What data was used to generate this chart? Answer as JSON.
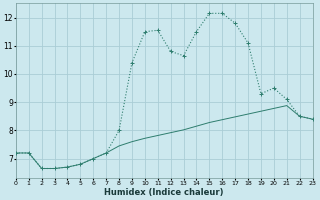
{
  "xlabel": "Humidex (Indice chaleur)",
  "background_color": "#cce8ee",
  "grid_color": "#aacdd6",
  "line_color": "#2e7d6e",
  "line1_x": [
    0,
    1,
    2,
    3,
    4,
    5,
    6,
    7,
    8,
    9,
    10,
    11,
    12,
    13,
    14,
    15,
    16,
    17,
    18,
    19,
    20,
    21,
    22,
    23
  ],
  "line1_y": [
    7.2,
    7.2,
    6.65,
    6.65,
    6.7,
    6.8,
    7.0,
    7.2,
    8.0,
    10.4,
    11.5,
    11.55,
    10.8,
    10.65,
    11.5,
    12.15,
    12.15,
    11.8,
    11.1,
    9.3,
    9.5,
    9.1,
    8.5,
    8.4
  ],
  "line2_x": [
    0,
    1,
    2,
    3,
    4,
    5,
    6,
    7,
    8,
    9,
    10,
    11,
    12,
    13,
    14,
    15,
    16,
    17,
    18,
    19,
    20,
    21,
    22,
    23
  ],
  "line2_y": [
    7.2,
    7.2,
    6.65,
    6.65,
    6.7,
    6.8,
    7.0,
    7.2,
    7.45,
    7.6,
    7.72,
    7.82,
    7.92,
    8.02,
    8.15,
    8.28,
    8.38,
    8.48,
    8.58,
    8.68,
    8.78,
    8.88,
    8.5,
    8.4
  ],
  "ylim": [
    6.3,
    12.5
  ],
  "xlim": [
    0,
    23
  ],
  "yticks": [
    7,
    8,
    9,
    10,
    11,
    12
  ],
  "xticks": [
    0,
    1,
    2,
    3,
    4,
    5,
    6,
    7,
    8,
    9,
    10,
    11,
    12,
    13,
    14,
    15,
    16,
    17,
    18,
    19,
    20,
    21,
    22,
    23
  ]
}
